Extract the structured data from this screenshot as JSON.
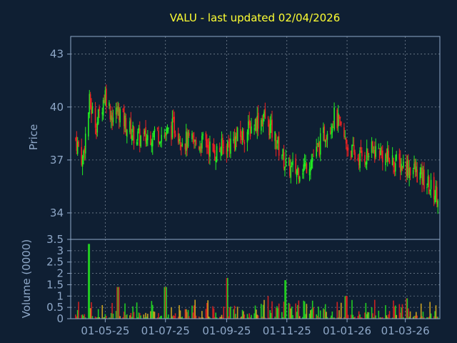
{
  "chart_data": {
    "type": "candlestick",
    "title": "VALU - last updated 02/04/2026",
    "price_panel": {
      "ylabel": "Price",
      "ylim": [
        32.5,
        44
      ],
      "yticks": [
        34,
        37,
        40,
        43
      ],
      "ytick_labels": [
        "34",
        "37",
        "40",
        "43"
      ]
    },
    "volume_panel": {
      "ylabel": "Volume (0000)",
      "ylim": [
        0,
        3.5
      ],
      "yticks": [
        0,
        0.5,
        1,
        1.5,
        2,
        2.5,
        3,
        3.5
      ],
      "ytick_labels": [
        "0",
        "0.5",
        "1",
        "1.5",
        "2",
        "2.5",
        "3",
        "3.5"
      ]
    },
    "x_range": [
      "2025-03-27",
      "2026-04-05"
    ],
    "xticks": [
      {
        "date": "2025-05-01",
        "label": "01-05-25"
      },
      {
        "date": "2025-07-01",
        "label": "01-07-25"
      },
      {
        "date": "2025-09-01",
        "label": "01-09-25"
      },
      {
        "date": "2025-11-01",
        "label": "01-11-25"
      },
      {
        "date": "2026-01-01",
        "label": "01-01-26"
      },
      {
        "date": "2026-03-01",
        "label": "01-03-26"
      }
    ],
    "colors": {
      "up": "#22ee22",
      "down": "#ee2222",
      "background": "#0f1f33",
      "grid": "#c8d4e0",
      "axis": "#8fa8c8",
      "title": "#ffff33",
      "volume_up": "#22cc22",
      "volume_down": "#cc2222",
      "volume_mixed": "#c8a020"
    },
    "grid": true,
    "close_anchors": [
      {
        "date": "2025-04-01",
        "close": 38.2
      },
      {
        "date": "2025-04-08",
        "close": 37.0
      },
      {
        "date": "2025-04-15",
        "close": 40.2
      },
      {
        "date": "2025-04-22",
        "close": 39.0
      },
      {
        "date": "2025-05-01",
        "close": 40.8
      },
      {
        "date": "2025-05-08",
        "close": 39.4
      },
      {
        "date": "2025-05-15",
        "close": 39.8
      },
      {
        "date": "2025-05-22",
        "close": 39.0
      },
      {
        "date": "2025-06-01",
        "close": 38.3
      },
      {
        "date": "2025-06-10",
        "close": 38.2
      },
      {
        "date": "2025-06-20",
        "close": 38.6
      },
      {
        "date": "2025-07-01",
        "close": 38.4
      },
      {
        "date": "2025-07-10",
        "close": 38.9
      },
      {
        "date": "2025-07-20",
        "close": 38.1
      },
      {
        "date": "2025-08-01",
        "close": 37.9
      },
      {
        "date": "2025-08-10",
        "close": 38.0
      },
      {
        "date": "2025-08-20",
        "close": 37.4
      },
      {
        "date": "2025-09-01",
        "close": 37.8
      },
      {
        "date": "2025-09-10",
        "close": 38.2
      },
      {
        "date": "2025-09-20",
        "close": 38.5
      },
      {
        "date": "2025-10-01",
        "close": 39.2
      },
      {
        "date": "2025-10-10",
        "close": 39.4
      },
      {
        "date": "2025-10-20",
        "close": 38.2
      },
      {
        "date": "2025-11-01",
        "close": 36.6
      },
      {
        "date": "2025-11-10",
        "close": 36.4
      },
      {
        "date": "2025-11-20",
        "close": 36.7
      },
      {
        "date": "2025-12-01",
        "close": 37.4
      },
      {
        "date": "2025-12-10",
        "close": 38.6
      },
      {
        "date": "2025-12-20",
        "close": 39.5
      },
      {
        "date": "2026-01-01",
        "close": 37.8
      },
      {
        "date": "2026-01-10",
        "close": 37.1
      },
      {
        "date": "2026-01-20",
        "close": 37.3
      },
      {
        "date": "2026-02-01",
        "close": 37.6
      },
      {
        "date": "2026-02-10",
        "close": 37.1
      },
      {
        "date": "2026-02-20",
        "close": 36.8
      },
      {
        "date": "2026-03-01",
        "close": 36.7
      },
      {
        "date": "2026-03-10",
        "close": 36.4
      },
      {
        "date": "2026-03-20",
        "close": 35.8
      },
      {
        "date": "2026-03-28",
        "close": 35.3
      },
      {
        "date": "2026-04-02",
        "close": 35.1
      }
    ],
    "volume_spikes": [
      {
        "date": "2025-04-14",
        "volume": 3.3
      },
      {
        "date": "2025-05-14",
        "volume": 1.4
      },
      {
        "date": "2025-07-01",
        "volume": 1.4
      },
      {
        "date": "2025-09-01",
        "volume": 1.8
      },
      {
        "date": "2025-10-12",
        "volume": 1.0
      },
      {
        "date": "2025-10-31",
        "volume": 1.7
      },
      {
        "date": "2025-12-31",
        "volume": 1.0
      },
      {
        "date": "2026-03-02",
        "volume": 0.9
      }
    ],
    "volume_typical_max": 0.8
  }
}
